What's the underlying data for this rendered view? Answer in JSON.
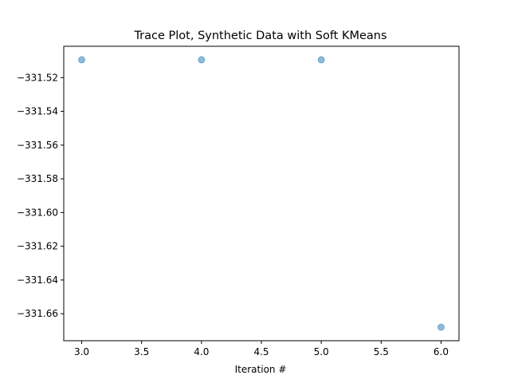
{
  "chart_data": {
    "type": "scatter",
    "title": "Trace Plot, Synthetic Data with Soft KMeans",
    "xlabel": "Iteration #",
    "ylabel": "",
    "xlim": [
      2.85,
      6.15
    ],
    "ylim": [
      -331.676,
      -331.5014
    ],
    "xticks": [
      3.0,
      3.5,
      4.0,
      4.5,
      5.0,
      5.5,
      6.0
    ],
    "xtick_labels": [
      "3.0",
      "3.5",
      "4.0",
      "4.5",
      "5.0",
      "5.5",
      "6.0"
    ],
    "yticks": [
      -331.52,
      -331.54,
      -331.56,
      -331.58,
      -331.6,
      -331.62,
      -331.64,
      -331.66
    ],
    "ytick_labels": [
      "−331.52",
      "−331.54",
      "−331.56",
      "−331.58",
      "−331.60",
      "−331.62",
      "−331.64",
      "−331.66"
    ],
    "grid": false,
    "series": [
      {
        "x": [
          3,
          4,
          5,
          6
        ],
        "y": [
          -331.5094,
          -331.5094,
          -331.5094,
          -331.668
        ],
        "color": "#1f77b4",
        "alpha": 0.5
      }
    ]
  }
}
